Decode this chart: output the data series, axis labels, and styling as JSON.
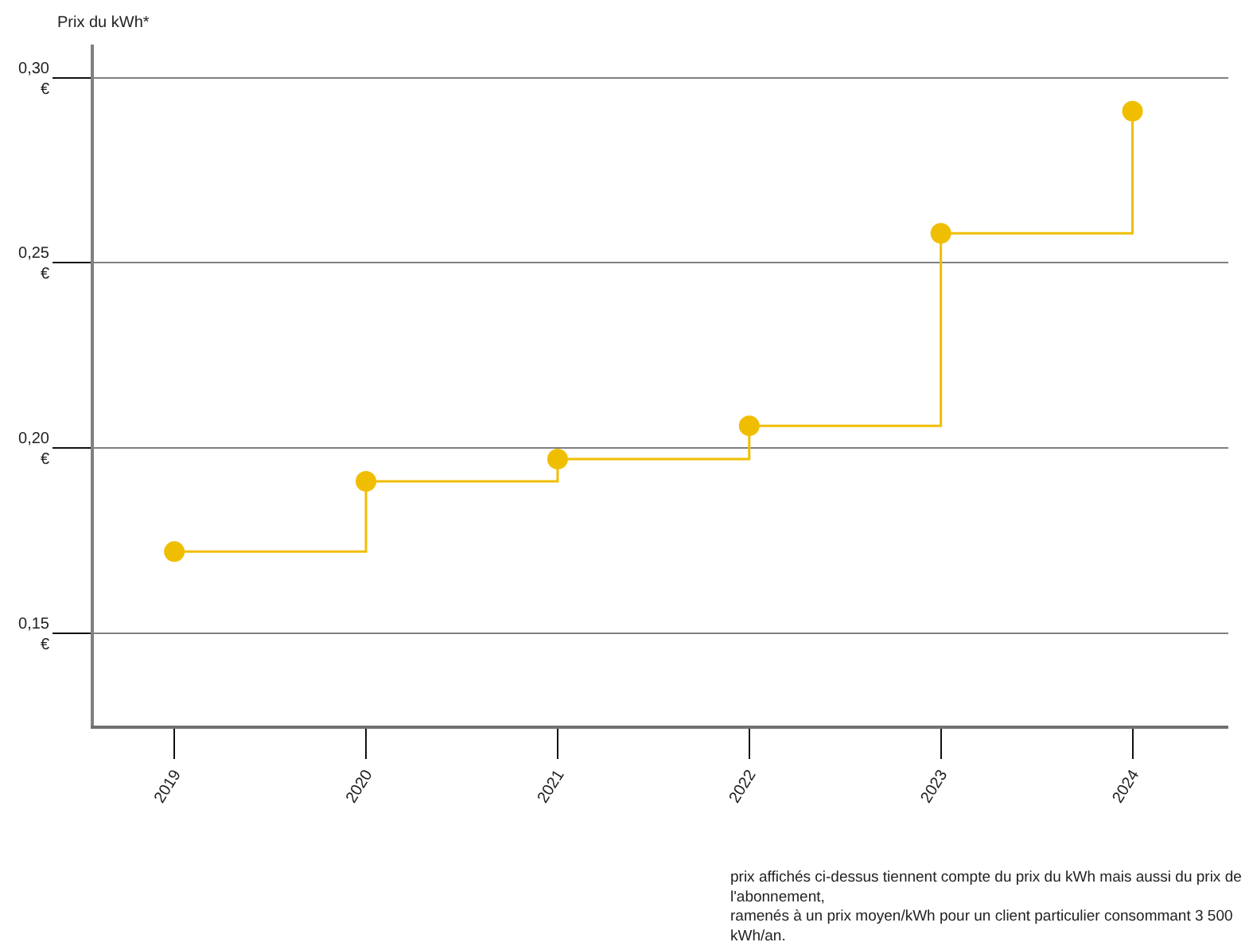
{
  "chart_data": {
    "type": "step",
    "ylabel": "Prix du kWh*",
    "categories": [
      "2019",
      "2020",
      "2021",
      "2022",
      "2023",
      "2024"
    ],
    "series": [
      {
        "color": "#f0be00",
        "values": [
          0.172,
          0.191,
          0.197,
          0.206,
          0.258,
          0.291
        ]
      }
    ],
    "ylim": [
      0.125,
      0.309
    ],
    "yticks": [
      {
        "value": 0.15,
        "label": "0,15 €"
      },
      {
        "value": 0.2,
        "label": "0,20 €"
      },
      {
        "value": 0.25,
        "label": "0,25 €"
      },
      {
        "value": 0.3,
        "label": "0,30 €"
      }
    ],
    "grid": "y",
    "marker": "circle",
    "line_style": "solid",
    "annotations": [
      "prix affichés ci-dessus tiennent compte du prix du kWh mais aussi du prix de l'abonnement,\nramenés à un prix moyen/kWh pour un client particulier consommant 3 500 kWh/an."
    ]
  }
}
